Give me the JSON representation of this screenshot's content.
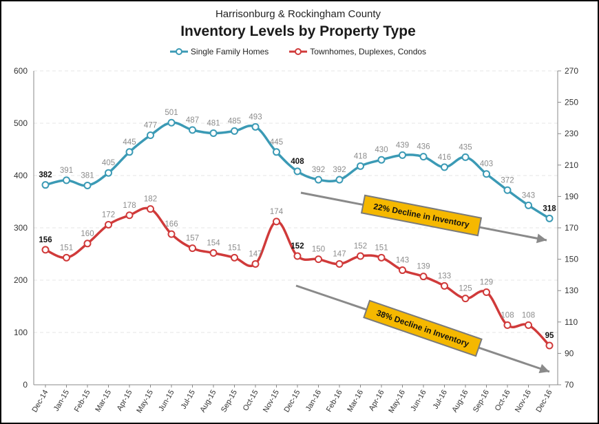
{
  "chart_data": {
    "type": "line",
    "subtitle": "Harrisonburg & Rockingham County",
    "title": "Inventory Levels by Property Type",
    "categories": [
      "Dec-14",
      "Jan-15",
      "Feb-15",
      "Mar-15",
      "Apr-15",
      "May-15",
      "Jun-15",
      "Jul-15",
      "Aug-15",
      "Sep-15",
      "Oct-15",
      "Nov-15",
      "Dec-15",
      "Jan-16",
      "Feb-16",
      "Mar-16",
      "Apr-16",
      "May-16",
      "Jun-16",
      "Jul-16",
      "Aug-16",
      "Sep-16",
      "Oct-16",
      "Nov-16",
      "Dec-16"
    ],
    "series": [
      {
        "name": "Single Family Homes",
        "axis": "left",
        "color": "#3b9ab5",
        "values": [
          382,
          391,
          381,
          405,
          445,
          477,
          501,
          487,
          481,
          485,
          493,
          445,
          408,
          392,
          392,
          418,
          430,
          439,
          436,
          416,
          435,
          403,
          372,
          343,
          318
        ],
        "bold_labels": [
          0,
          12,
          24
        ]
      },
      {
        "name": "Townhomes, Duplexes, Condos",
        "axis": "right",
        "color": "#d03a3a",
        "values": [
          156,
          151,
          160,
          172,
          178,
          182,
          166,
          157,
          154,
          151,
          147,
          174,
          152,
          150,
          147,
          152,
          151,
          143,
          139,
          133,
          125,
          129,
          108,
          108,
          95
        ],
        "bold_labels": [
          0,
          12,
          24
        ]
      }
    ],
    "y_left": {
      "min": 0,
      "max": 600,
      "ticks": [
        "0",
        "100",
        "200",
        "300",
        "400",
        "500",
        "600"
      ]
    },
    "y_right": {
      "min": 70,
      "max": 270,
      "ticks": [
        "70",
        "90",
        "110",
        "130",
        "150",
        "170",
        "190",
        "210",
        "230",
        "250",
        "270"
      ]
    },
    "grid": true,
    "legend_position": "top",
    "annotations": [
      {
        "text": "22% Decline in Inventory"
      },
      {
        "text": "38% Decline in Inventory"
      }
    ],
    "annotation_color": "#f5b800"
  }
}
